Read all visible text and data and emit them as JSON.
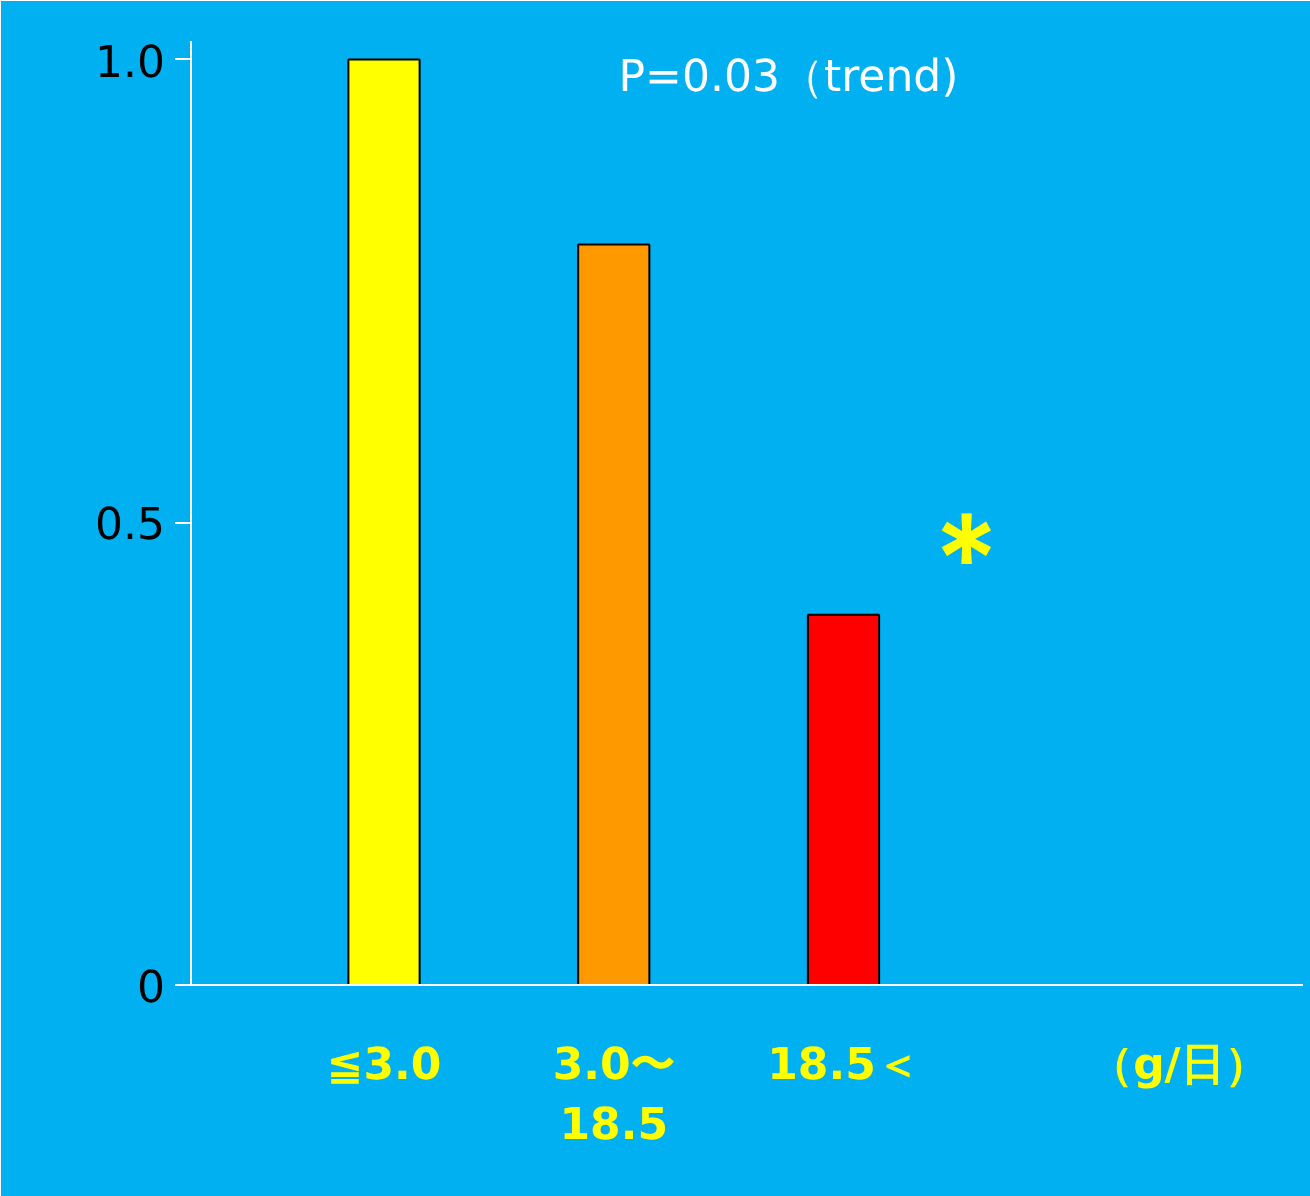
{
  "chart_data": {
    "type": "bar",
    "categories": [
      "≦3.0",
      "3.0〜\n18.5",
      "18.5＜"
    ],
    "values": [
      1.0,
      0.8,
      0.4
    ],
    "colors": [
      "#ffff00",
      "#ff9900",
      "#ff0000"
    ],
    "xlabel": "（g/日）",
    "ylim": [
      0,
      1.02
    ],
    "yticks": [
      0,
      0.5,
      {
        "value": 1,
        "label": "1.0"
      }
    ],
    "grid": false,
    "annotations": [
      "P=0.03（trend)",
      "＊"
    ]
  }
}
